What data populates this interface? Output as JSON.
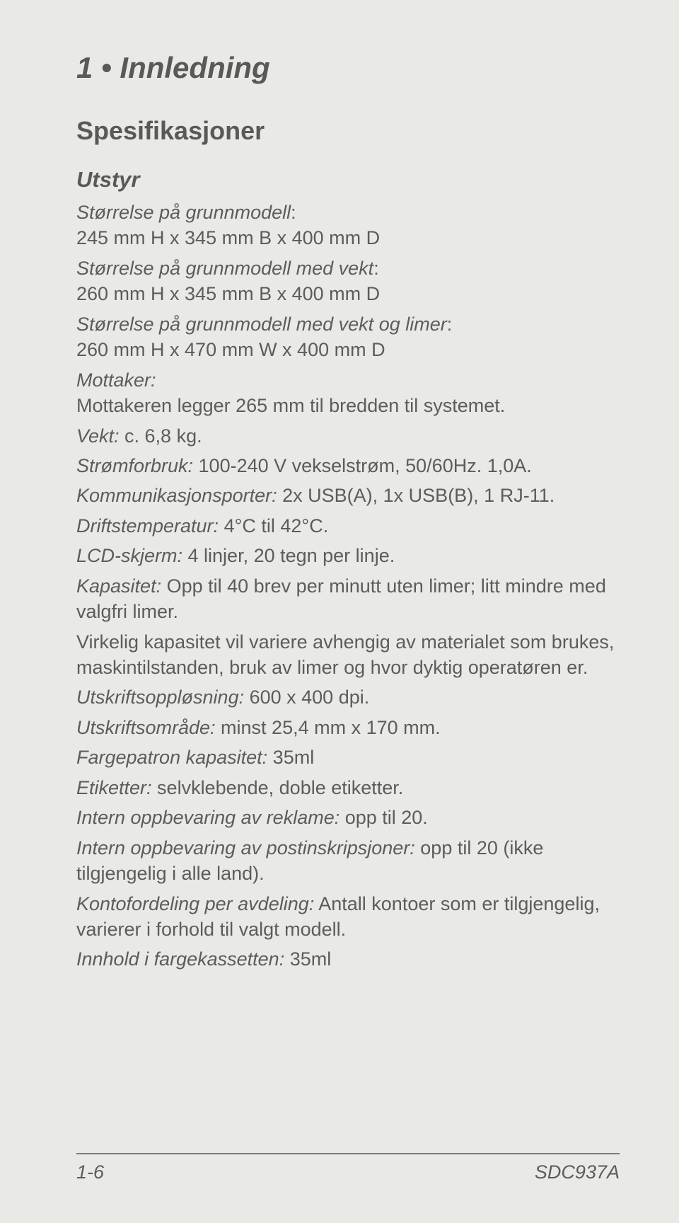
{
  "chapter": "1 • Innledning",
  "section": "Spesifikasjoner",
  "subsection": "Utstyr",
  "specs": [
    {
      "label": "Størrelse på grunnmodell",
      "value": ":",
      "after": "245 mm H x 345 mm B x 400 mm D",
      "break": true
    },
    {
      "label": "Størrelse på grunnmodell med vekt",
      "value": ":",
      "after": "260 mm H x 345 mm B x 400 mm D",
      "break": true
    },
    {
      "label": "Størrelse på grunnmodell med vekt og limer",
      "value": ":",
      "after": "260 mm H x 470 mm W x 400 mm D",
      "break": true
    },
    {
      "label": "Mottaker:",
      "value": "",
      "after": "Mottakeren legger 265 mm til bredden til systemet.",
      "break": true
    },
    {
      "label": "Vekt:",
      "value": " c. 6,8 kg."
    },
    {
      "label": "Strømforbruk:",
      "value": " 100-240 V vekselstrøm, 50/60Hz. 1,0A."
    },
    {
      "label": "Kommunikasjonsporter:",
      "value": " 2x USB(A), 1x USB(B), 1 RJ-11."
    },
    {
      "label": "Driftstemperatur:",
      "value": " 4°C til 42°C."
    },
    {
      "label": "LCD-skjerm:",
      "value": " 4 linjer, 20 tegn per linje."
    },
    {
      "label": "Kapasitet:",
      "value": " Opp til 40 brev per minutt uten limer; litt mindre med valgfri limer."
    },
    {
      "plain": "Virkelig kapasitet vil variere avhengig av materialet som brukes, maskintilstanden, bruk av limer og hvor dyktig operatøren er."
    },
    {
      "label": "Utskriftsoppløsning:",
      "value": " 600 x 400 dpi."
    },
    {
      "label": "Utskriftsområde:",
      "value": " minst 25,4 mm x 170 mm."
    },
    {
      "label": "Fargepatron kapasitet:",
      "value": " 35ml"
    },
    {
      "label": "Etiketter:",
      "value": " selvklebende, doble etiketter."
    },
    {
      "label": "Intern oppbevaring av reklame:",
      "value": " opp til 20."
    },
    {
      "label": "Intern oppbevaring av postinskripsjoner:",
      "value": " opp til 20 (ikke tilgjengelig i alle land)."
    },
    {
      "label": "Kontofordeling per avdeling:",
      "value": " Antall kontoer som er tilgjengelig, varierer i forhold til valgt modell."
    },
    {
      "label": "Innhold i fargekassetten:",
      "value": " 35ml"
    }
  ],
  "footer": {
    "left": "1-6",
    "right": "SDC937A"
  }
}
